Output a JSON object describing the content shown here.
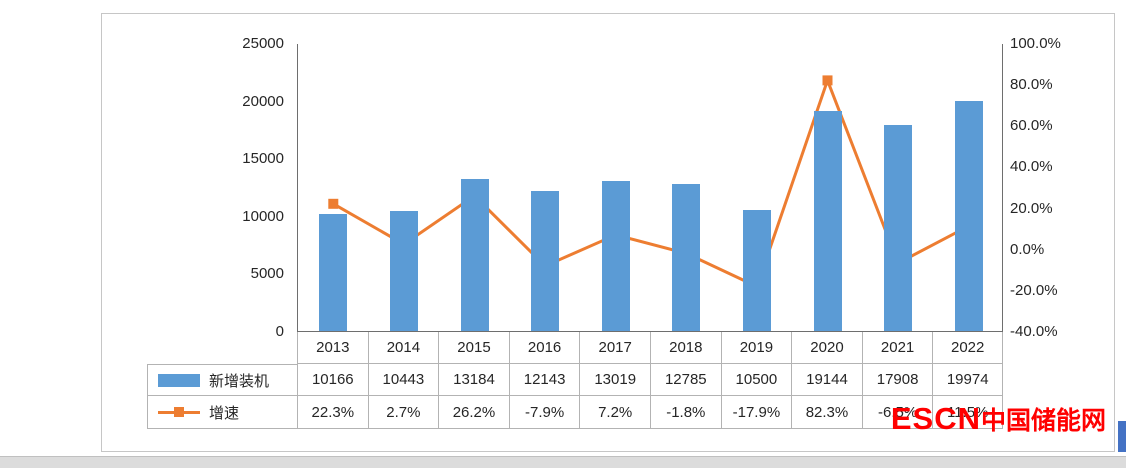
{
  "chart_data": {
    "type": "combo",
    "categories": [
      "2013",
      "2014",
      "2015",
      "2016",
      "2017",
      "2018",
      "2019",
      "2020",
      "2021",
      "2022"
    ],
    "series": [
      {
        "name": "新增装机",
        "type": "bar",
        "axis": "left",
        "values": [
          10166,
          10443,
          13184,
          12143,
          13019,
          12785,
          10500,
          19144,
          17908,
          19974
        ],
        "color": "#5B9BD5"
      },
      {
        "name": "增速",
        "type": "line",
        "axis": "right",
        "values": [
          22.3,
          2.7,
          26.2,
          -7.9,
          7.2,
          -1.8,
          -17.9,
          82.3,
          -6.5,
          11.5
        ],
        "color": "#ED7D31"
      }
    ],
    "left_axis": {
      "min": 0,
      "max": 25000,
      "step": 5000,
      "ticks": [
        "25000",
        "20000",
        "15000",
        "10000",
        "5000",
        "0"
      ]
    },
    "right_axis": {
      "min": -40,
      "max": 100,
      "step": 20,
      "ticks": [
        "100.0%",
        "80.0%",
        "60.0%",
        "40.0%",
        "20.0%",
        "0.0%",
        "-20.0%",
        "-40.0%"
      ]
    },
    "grid": "off",
    "legend_position": "table-left",
    "table": {
      "row1_label": "新增装机",
      "row1_values": [
        "10166",
        "10443",
        "13184",
        "12143",
        "13019",
        "12785",
        "10500",
        "19144",
        "17908",
        "19974"
      ],
      "row2_label": "增速",
      "row2_values": [
        "22.3%",
        "2.7%",
        "26.2%",
        "-7.9%",
        "7.2%",
        "-1.8%",
        "-17.9%",
        "82.3%",
        "-6.5%",
        "11.5%"
      ]
    }
  },
  "watermark": {
    "text_en": "ESCN",
    "text_zh": "中国储能网",
    "color": "#ff0000"
  }
}
